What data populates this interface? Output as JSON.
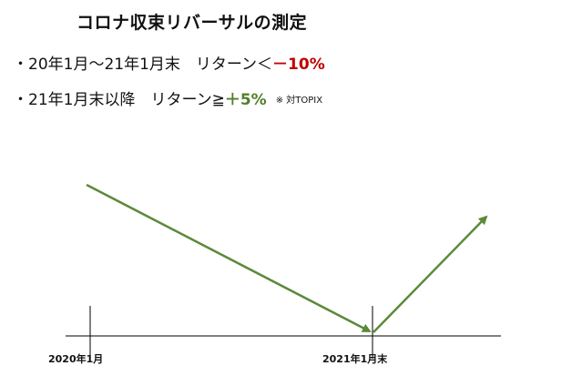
{
  "title": "コロナ収束リバーサルの測定",
  "rules": [
    {
      "bullet": "・",
      "text": "20年1月～21年1月末　リターン＜",
      "value": "－10%",
      "value_color": "#c00000"
    },
    {
      "bullet": "・",
      "text": "21年1月末以降　リターン≧",
      "value": "＋5%",
      "value_color": "#4f7f2a",
      "note": "※ 対TOPIX"
    }
  ],
  "timeline": {
    "labels": [
      "2020年1月",
      "2021年1月末"
    ],
    "arrow_color": "#5b8a3a"
  }
}
